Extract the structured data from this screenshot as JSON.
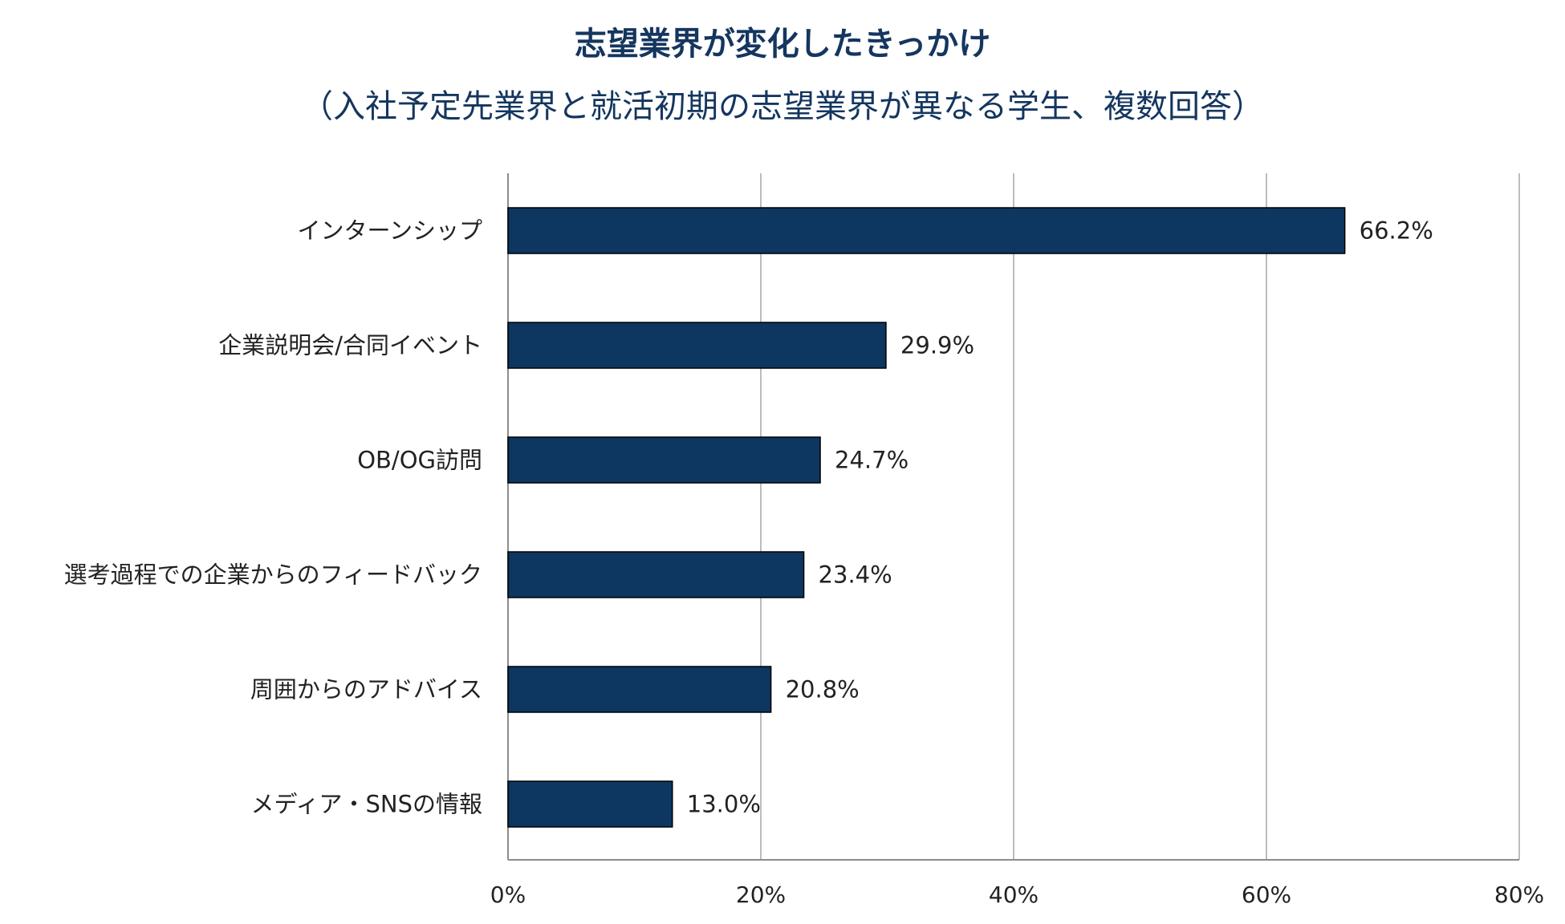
{
  "colors": {
    "bar": "#0d3661",
    "title": "#14365f"
  },
  "chart_data": {
    "type": "bar",
    "orientation": "horizontal",
    "title": "志望業界が変化したきっかけ",
    "subtitle": "（入社予定先業界と就活初期の志望業界が異なる学生、複数回答）",
    "categories": [
      "インターンシップ",
      "企業説明会/合同イベント",
      "OB/OG訪問",
      "選考過程での企業からのフィードバック",
      "周囲からのアドバイス",
      "メディア・SNSの情報"
    ],
    "values": [
      66.2,
      29.9,
      24.7,
      23.4,
      20.8,
      13.0
    ],
    "value_labels": [
      "66.2%",
      "29.9%",
      "24.7%",
      "23.4%",
      "20.8%",
      "13.0%"
    ],
    "xlim": [
      0,
      80
    ],
    "xticks": [
      0,
      20,
      40,
      60,
      80
    ],
    "xtick_labels": [
      "0%",
      "20%",
      "40%",
      "60%",
      "80%"
    ],
    "grid": true,
    "legend": "none"
  }
}
